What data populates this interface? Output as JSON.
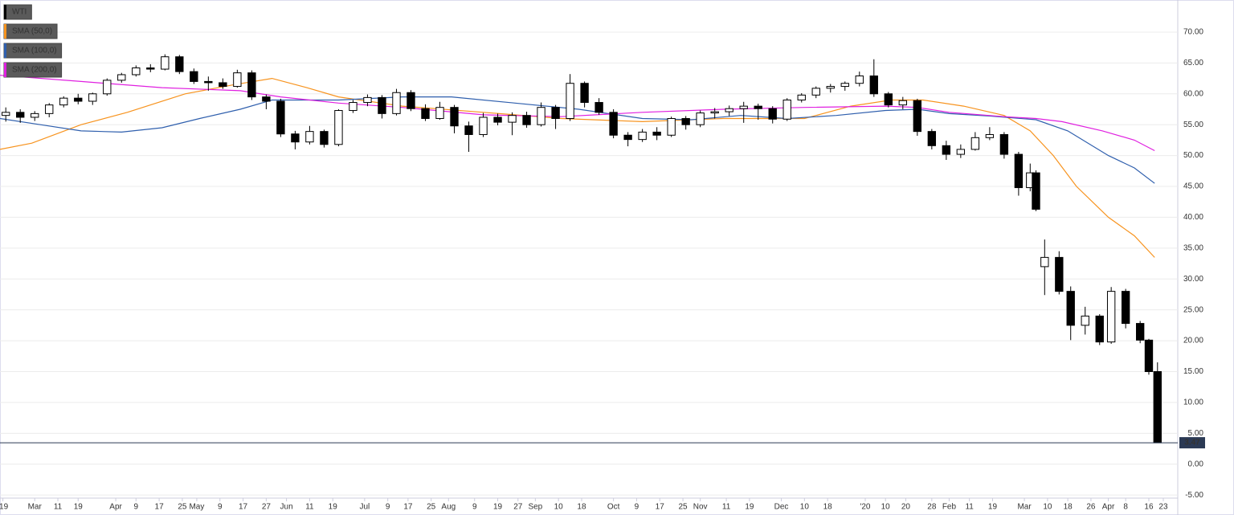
{
  "chart_data": {
    "type": "candlestick",
    "xlim": [
      0,
      407
    ],
    "ylim": [
      -5.5,
      75.2
    ],
    "yticks": [
      {
        "value": -5,
        "label": "-5.00"
      },
      {
        "value": 0,
        "label": "0.00"
      },
      {
        "value": 5,
        "label": "5.00"
      },
      {
        "value": 10,
        "label": "10.00"
      },
      {
        "value": 15,
        "label": "15.00"
      },
      {
        "value": 20,
        "label": "20.00"
      },
      {
        "value": 25,
        "label": "25.00"
      },
      {
        "value": 30,
        "label": "30.00"
      },
      {
        "value": 35,
        "label": "35.00"
      },
      {
        "value": 40,
        "label": "40.00"
      },
      {
        "value": 45,
        "label": "45.00"
      },
      {
        "value": 50,
        "label": "50.00"
      },
      {
        "value": 55,
        "label": "55.00"
      },
      {
        "value": 60,
        "label": "60.00"
      },
      {
        "value": 65,
        "label": "65.00"
      },
      {
        "value": 70,
        "label": "70.00"
      }
    ],
    "xticks": [
      {
        "value": 1,
        "label": "'19"
      },
      {
        "value": 12,
        "label": "Mar"
      },
      {
        "value": 20,
        "label": "11"
      },
      {
        "value": 27,
        "label": "19"
      },
      {
        "value": 40,
        "label": "Apr"
      },
      {
        "value": 47,
        "label": "9"
      },
      {
        "value": 55,
        "label": "17"
      },
      {
        "value": 63,
        "label": "25"
      },
      {
        "value": 68,
        "label": "May"
      },
      {
        "value": 76,
        "label": "9"
      },
      {
        "value": 84,
        "label": "17"
      },
      {
        "value": 92,
        "label": "27"
      },
      {
        "value": 99,
        "label": "Jun"
      },
      {
        "value": 107,
        "label": "11"
      },
      {
        "value": 115,
        "label": "19"
      },
      {
        "value": 126,
        "label": "Jul"
      },
      {
        "value": 134,
        "label": "9"
      },
      {
        "value": 141,
        "label": "17"
      },
      {
        "value": 149,
        "label": "25"
      },
      {
        "value": 155,
        "label": "Aug"
      },
      {
        "value": 164,
        "label": "9"
      },
      {
        "value": 172,
        "label": "19"
      },
      {
        "value": 179,
        "label": "27"
      },
      {
        "value": 185,
        "label": "Sep"
      },
      {
        "value": 193,
        "label": "10"
      },
      {
        "value": 201,
        "label": "18"
      },
      {
        "value": 212,
        "label": "Oct"
      },
      {
        "value": 220,
        "label": "9"
      },
      {
        "value": 228,
        "label": "17"
      },
      {
        "value": 236,
        "label": "25"
      },
      {
        "value": 242,
        "label": "Nov"
      },
      {
        "value": 251,
        "label": "11"
      },
      {
        "value": 259,
        "label": "19"
      },
      {
        "value": 270,
        "label": "Dec"
      },
      {
        "value": 278,
        "label": "10"
      },
      {
        "value": 286,
        "label": "18"
      },
      {
        "value": 299,
        "label": "'20"
      },
      {
        "value": 306,
        "label": "10"
      },
      {
        "value": 313,
        "label": "20"
      },
      {
        "value": 322,
        "label": "28"
      },
      {
        "value": 328,
        "label": "Feb"
      },
      {
        "value": 335,
        "label": "11"
      },
      {
        "value": 343,
        "label": "19"
      },
      {
        "value": 354,
        "label": "Mar"
      },
      {
        "value": 362,
        "label": "10"
      },
      {
        "value": 369,
        "label": "18"
      },
      {
        "value": 377,
        "label": "26"
      },
      {
        "value": 383,
        "label": "Apr"
      },
      {
        "value": 389,
        "label": "8"
      },
      {
        "value": 397,
        "label": "16"
      },
      {
        "value": 402,
        "label": "23"
      }
    ],
    "grid": true,
    "last_price": 3.47,
    "series": [
      {
        "name": "WTI",
        "color": "#000000",
        "x": [
          2,
          7,
          12,
          17,
          22,
          27,
          32,
          37,
          42,
          47,
          52,
          57,
          62,
          67,
          72,
          77,
          82,
          87,
          92,
          97,
          102,
          107,
          112,
          117,
          122,
          127,
          132,
          137,
          142,
          147,
          152,
          157,
          162,
          167,
          172,
          177,
          182,
          187,
          192,
          197,
          202,
          207,
          212,
          217,
          222,
          227,
          232,
          237,
          242,
          247,
          252,
          257,
          262,
          267,
          272,
          277,
          282,
          287,
          292,
          297,
          302,
          307,
          312,
          317,
          322,
          327,
          332,
          337,
          342,
          347,
          352,
          356,
          358,
          361,
          366,
          370,
          375,
          380,
          384,
          389,
          394,
          397,
          400
        ],
        "open": [
          56.5,
          57.0,
          56.2,
          56.8,
          58.2,
          59.3,
          58.8,
          60.0,
          62.2,
          63.1,
          64.2,
          64.0,
          66.0,
          63.6,
          62.0,
          61.8,
          61.2,
          63.4,
          59.5,
          58.8,
          53.5,
          52.2,
          53.9,
          51.8,
          57.3,
          58.6,
          59.4,
          56.8,
          60.2,
          57.6,
          56.0,
          57.8,
          54.8,
          53.4,
          56.2,
          55.4,
          56.5,
          55.0,
          57.8,
          56.0,
          61.7,
          58.6,
          57.0,
          53.3,
          52.6,
          53.8,
          53.3,
          56.0,
          55.0,
          56.9,
          57.1,
          57.6,
          58.0,
          57.6,
          55.9,
          59.0,
          59.8,
          60.9,
          61.2,
          61.7,
          62.9,
          60.0,
          58.2,
          58.9,
          53.9,
          51.6,
          50.2,
          51.0,
          52.9,
          53.4,
          50.2,
          44.8,
          47.2,
          32.0,
          33.5,
          28.0,
          22.5,
          24.0,
          19.8,
          28.0,
          22.8,
          20.1,
          15.0
        ],
        "high": [
          57.8,
          57.5,
          57.2,
          58.5,
          59.6,
          60.0,
          60.2,
          62.5,
          63.4,
          64.6,
          64.8,
          66.4,
          66.3,
          64.1,
          62.8,
          62.5,
          63.9,
          63.8,
          59.9,
          59.2,
          54.0,
          54.8,
          54.2,
          57.5,
          59.0,
          59.9,
          59.8,
          60.8,
          60.6,
          58.3,
          58.7,
          58.2,
          55.5,
          56.9,
          56.8,
          57.0,
          57.1,
          58.6,
          58.2,
          63.2,
          62.0,
          59.3,
          57.5,
          53.8,
          54.3,
          54.6,
          56.3,
          56.4,
          57.3,
          57.7,
          58.1,
          58.7,
          58.4,
          58.0,
          59.3,
          60.1,
          61.2,
          61.6,
          62.0,
          63.6,
          65.6,
          60.3,
          59.5,
          59.2,
          54.3,
          52.4,
          51.8,
          53.8,
          54.6,
          53.8,
          50.6,
          48.7,
          47.6,
          36.4,
          34.5,
          28.8,
          25.5,
          24.3,
          28.7,
          28.4,
          23.2,
          20.3,
          16.5
        ],
        "low": [
          55.5,
          55.3,
          55.6,
          56.2,
          57.8,
          58.3,
          58.2,
          59.7,
          61.8,
          62.8,
          63.5,
          63.8,
          63.2,
          61.6,
          60.5,
          60.8,
          61.0,
          59.0,
          57.5,
          53.0,
          51.0,
          51.8,
          51.3,
          51.5,
          56.9,
          58.0,
          56.0,
          56.5,
          57.2,
          55.6,
          55.8,
          53.6,
          50.6,
          53.0,
          54.9,
          53.3,
          54.5,
          54.7,
          54.3,
          55.6,
          57.8,
          56.6,
          52.8,
          51.5,
          52.2,
          52.5,
          53.0,
          54.2,
          54.6,
          56.0,
          56.4,
          55.3,
          55.8,
          55.2,
          55.6,
          58.6,
          59.3,
          60.2,
          60.5,
          61.2,
          59.5,
          57.8,
          57.5,
          53.2,
          51.0,
          49.3,
          49.6,
          50.8,
          52.5,
          49.5,
          43.5,
          44.2,
          41.0,
          27.4,
          27.5,
          20.1,
          21.0,
          19.3,
          19.5,
          22.0,
          19.6,
          14.5,
          3.47
        ],
        "close": [
          57.0,
          56.2,
          56.8,
          58.2,
          59.3,
          58.8,
          60.0,
          62.2,
          63.1,
          64.2,
          64.0,
          66.0,
          63.6,
          62.0,
          61.8,
          61.2,
          63.4,
          59.5,
          58.8,
          53.5,
          52.2,
          53.9,
          51.8,
          57.3,
          58.6,
          59.4,
          56.8,
          60.2,
          57.6,
          56.0,
          57.8,
          54.8,
          53.4,
          56.2,
          55.4,
          56.5,
          55.0,
          57.8,
          56.0,
          61.7,
          58.6,
          57.0,
          53.3,
          52.6,
          53.8,
          53.3,
          56.0,
          55.0,
          56.9,
          57.1,
          57.6,
          58.0,
          57.6,
          55.9,
          59.0,
          59.8,
          60.9,
          61.2,
          61.7,
          62.9,
          60.0,
          58.2,
          58.9,
          53.9,
          51.6,
          50.2,
          51.0,
          52.9,
          53.4,
          50.2,
          44.8,
          47.2,
          41.3,
          33.5,
          28.0,
          22.5,
          24.0,
          19.8,
          28.0,
          22.8,
          20.1,
          15.0,
          3.47
        ]
      },
      {
        "name": "SMA (50,0)",
        "color": "#f7931e",
        "x": [
          0,
          11,
          28,
          44,
          64,
          81,
          94,
          106,
          117,
          139,
          167,
          194,
          222,
          250,
          278,
          294,
          308,
          319,
          333,
          347,
          356,
          364,
          372,
          383,
          392,
          399
        ],
        "values": [
          51,
          52,
          55,
          57,
          60,
          61.5,
          62.5,
          61,
          59.5,
          58,
          57,
          56,
          55.5,
          56,
          56,
          58,
          59,
          59,
          58,
          56.5,
          54,
          50,
          45,
          40,
          37,
          33.5
        ]
      },
      {
        "name": "SMA (100,0)",
        "color": "#2f5fad",
        "x": [
          0,
          14,
          28,
          42,
          56,
          69,
          83,
          94,
          117,
          139,
          156,
          178,
          200,
          222,
          239,
          256,
          272,
          289,
          306,
          317,
          328,
          342,
          358,
          369,
          383,
          392,
          399
        ],
        "values": [
          56,
          55,
          54,
          53.8,
          54.5,
          56,
          57.5,
          59,
          59,
          59.5,
          59.5,
          58.5,
          57.5,
          56,
          55.8,
          56.5,
          56,
          56.5,
          57.3,
          57.5,
          56.8,
          56.4,
          55.8,
          54,
          50,
          48,
          45.5
        ]
      },
      {
        "name": "SMA (200,0)",
        "color": "#e020e0",
        "x": [
          0,
          28,
          56,
          83,
          97,
          117,
          139,
          167,
          194,
          222,
          250,
          278,
          306,
          317,
          328,
          347,
          358,
          367,
          381,
          392,
          399
        ],
        "values": [
          63,
          62,
          61,
          60.5,
          59.5,
          58.5,
          57.8,
          56.6,
          56.3,
          57,
          57.5,
          57.8,
          58,
          57.8,
          57,
          56.3,
          56,
          55.5,
          54,
          52.5,
          50.8
        ]
      }
    ]
  }
}
